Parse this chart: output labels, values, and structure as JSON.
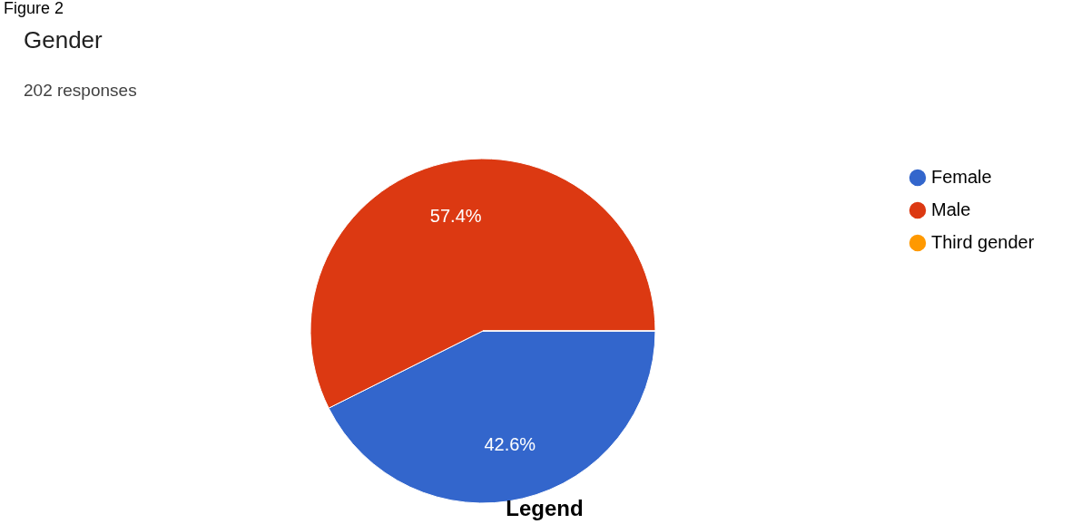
{
  "chart_data": {
    "type": "pie",
    "title": "Gender",
    "subtitle": "202 responses",
    "categories": [
      "Female",
      "Male",
      "Third gender"
    ],
    "values": [
      42.6,
      57.4,
      0
    ],
    "colors": [
      "#3366cc",
      "#dc3912",
      "#ff9900"
    ],
    "value_labels": [
      "42.6%",
      "57.4%",
      null
    ],
    "legend": "right",
    "annotations": [
      "Figure 2",
      "Legend"
    ]
  }
}
